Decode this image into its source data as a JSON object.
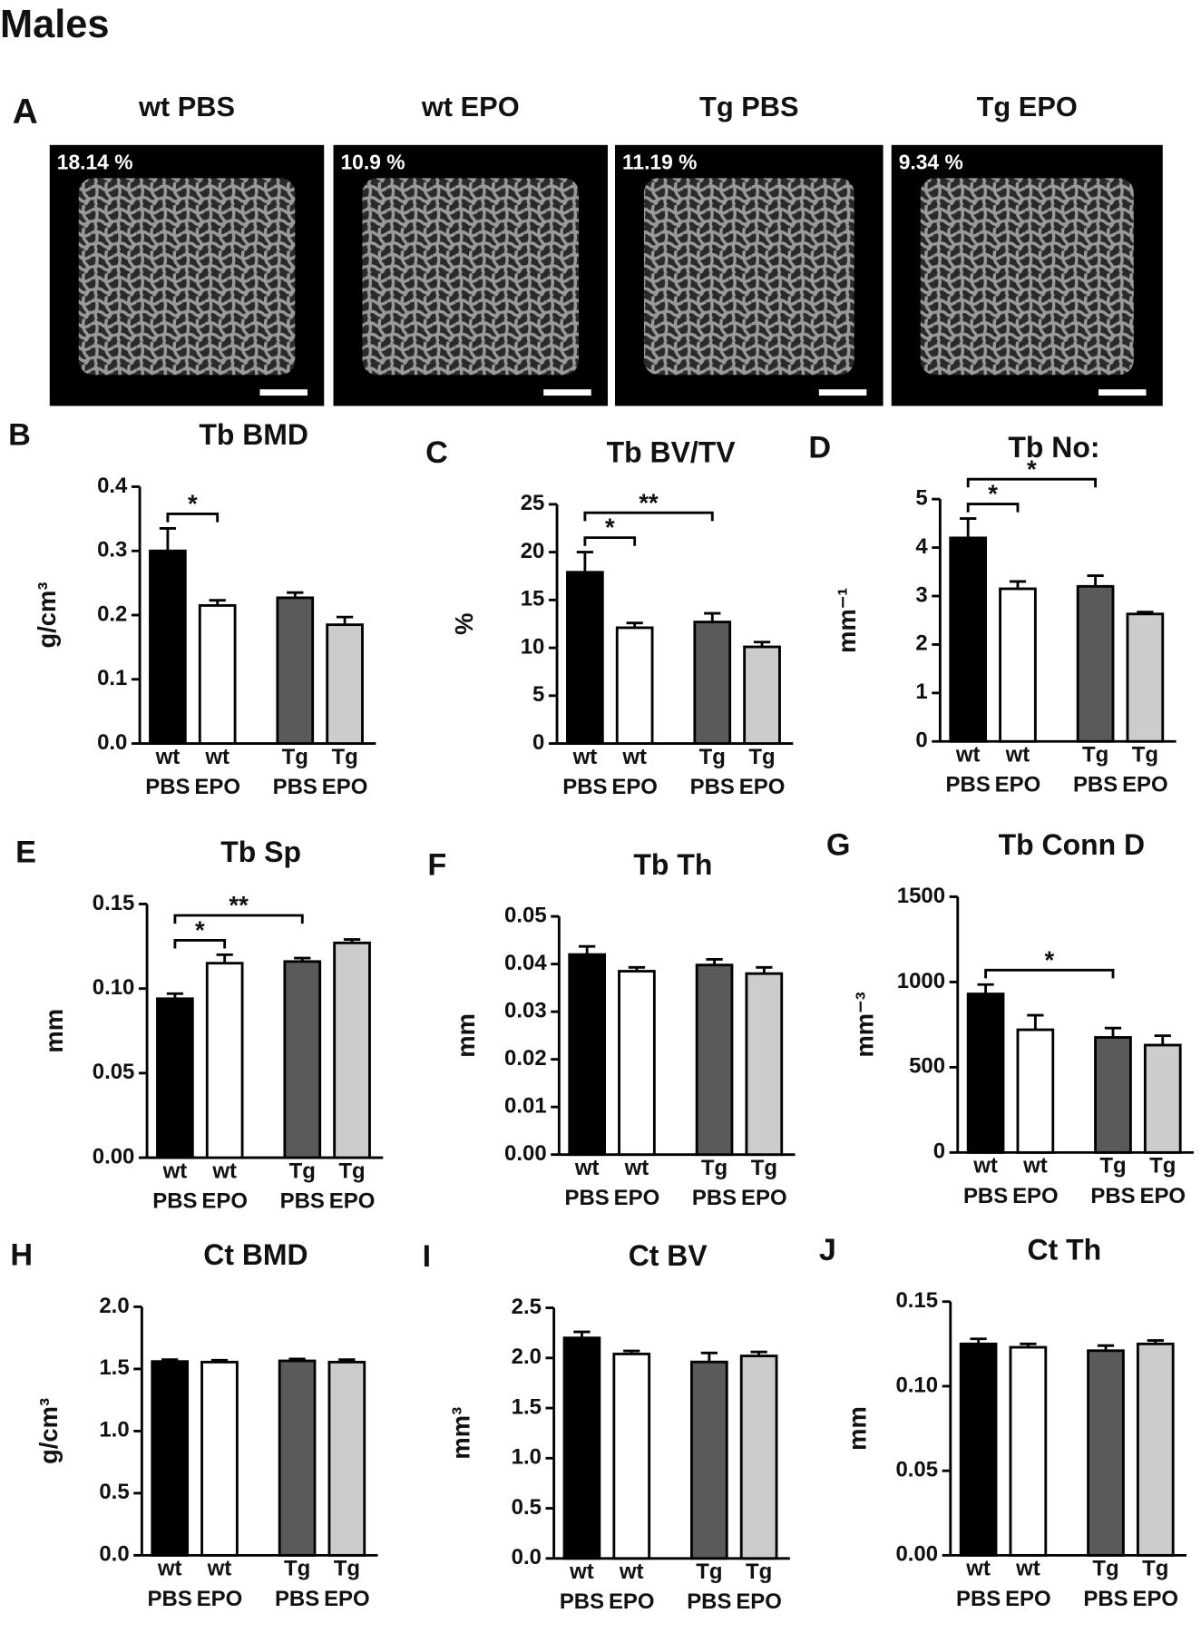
{
  "figure_title": "Males",
  "panel_a": {
    "label": "A",
    "images": [
      {
        "title": "wt PBS",
        "bv_tv": "18.14 %"
      },
      {
        "title": "wt EPO",
        "bv_tv": "10.9 %"
      },
      {
        "title": "Tg PBS",
        "bv_tv": "11.19 %"
      },
      {
        "title": "Tg EPO",
        "bv_tv": "9.34 %"
      }
    ]
  },
  "chart_data": [
    {
      "type": "bar",
      "panel": "B",
      "title": "Tb BMD",
      "y_label": "g/cm³",
      "categories": [
        [
          "wt",
          "PBS"
        ],
        [
          "wt",
          "EPO"
        ],
        [
          "Tg",
          "PBS"
        ],
        [
          "Tg",
          "EPO"
        ]
      ],
      "values": [
        0.3,
        0.215,
        0.227,
        0.185
      ],
      "errors": [
        0.035,
        0.008,
        0.008,
        0.012
      ],
      "colors": [
        "#000000",
        "#ffffff",
        "#5a5a5a",
        "#cccccc"
      ],
      "ylim": [
        0,
        0.4
      ],
      "yticks": [
        {
          "value": 0,
          "label": "0.0"
        },
        0.1,
        0.2,
        0.3,
        0.4
      ],
      "significance": [
        {
          "groups": [
            0,
            1
          ],
          "label": "*"
        }
      ]
    },
    {
      "type": "bar",
      "panel": "C",
      "title": "Tb BV/TV",
      "y_label": "%",
      "categories": [
        [
          "wt",
          "PBS"
        ],
        [
          "wt",
          "EPO"
        ],
        [
          "Tg",
          "PBS"
        ],
        [
          "Tg",
          "EPO"
        ]
      ],
      "values": [
        17.9,
        12.1,
        12.7,
        10.1
      ],
      "errors": [
        2.1,
        0.5,
        0.9,
        0.5
      ],
      "colors": [
        "#000000",
        "#ffffff",
        "#5a5a5a",
        "#cccccc"
      ],
      "ylim": [
        0,
        25
      ],
      "yticks": [
        0,
        5,
        10,
        15,
        20,
        25
      ],
      "significance": [
        {
          "groups": [
            0,
            1
          ],
          "label": "*"
        },
        {
          "groups": [
            0,
            2
          ],
          "label": "**"
        }
      ]
    },
    {
      "type": "bar",
      "panel": "D",
      "title": "Tb No:",
      "y_label": "mm⁻¹",
      "categories": [
        [
          "wt",
          "PBS"
        ],
        [
          "wt",
          "EPO"
        ],
        [
          "Tg",
          "PBS"
        ],
        [
          "Tg",
          "EPO"
        ]
      ],
      "values": [
        4.2,
        3.15,
        3.2,
        2.63
      ],
      "errors": [
        0.4,
        0.15,
        0.22,
        0.04
      ],
      "colors": [
        "#000000",
        "#ffffff",
        "#5a5a5a",
        "#cccccc"
      ],
      "ylim": [
        0,
        5
      ],
      "yticks": [
        0,
        1,
        2,
        3,
        4,
        5
      ],
      "significance": [
        {
          "groups": [
            0,
            1
          ],
          "label": "*"
        },
        {
          "groups": [
            0,
            2
          ],
          "label": "*"
        }
      ]
    },
    {
      "type": "bar",
      "panel": "E",
      "title": "Tb Sp",
      "y_label": "mm",
      "categories": [
        [
          "wt",
          "PBS"
        ],
        [
          "wt",
          "EPO"
        ],
        [
          "Tg",
          "PBS"
        ],
        [
          "Tg",
          "EPO"
        ]
      ],
      "values": [
        0.094,
        0.115,
        0.116,
        0.127
      ],
      "errors": [
        0.003,
        0.005,
        0.002,
        0.002
      ],
      "colors": [
        "#000000",
        "#ffffff",
        "#5a5a5a",
        "#cccccc"
      ],
      "ylim": [
        0,
        0.15
      ],
      "yticks": [
        {
          "value": 0,
          "label": "0.00"
        },
        0.05,
        {
          "value": 0.1,
          "label": "0.10"
        },
        0.15
      ],
      "significance": [
        {
          "groups": [
            0,
            1
          ],
          "label": "*"
        },
        {
          "groups": [
            0,
            2
          ],
          "label": "**"
        }
      ]
    },
    {
      "type": "bar",
      "panel": "F",
      "title": "Tb Th",
      "y_label": "mm",
      "categories": [
        [
          "wt",
          "PBS"
        ],
        [
          "wt",
          "EPO"
        ],
        [
          "Tg",
          "PBS"
        ],
        [
          "Tg",
          "EPO"
        ]
      ],
      "values": [
        0.042,
        0.0385,
        0.0398,
        0.038
      ],
      "errors": [
        0.0017,
        0.0008,
        0.0012,
        0.0013
      ],
      "colors": [
        "#000000",
        "#ffffff",
        "#5a5a5a",
        "#cccccc"
      ],
      "ylim": [
        0,
        0.05
      ],
      "yticks": [
        {
          "value": 0,
          "label": "0.00"
        },
        0.01,
        0.02,
        0.03,
        0.04,
        0.05
      ],
      "significance": []
    },
    {
      "type": "bar",
      "panel": "G",
      "title": "Tb Conn D",
      "y_label": "mm⁻³",
      "categories": [
        [
          "wt",
          "PBS"
        ],
        [
          "wt",
          "EPO"
        ],
        [
          "Tg",
          "PBS"
        ],
        [
          "Tg",
          "EPO"
        ]
      ],
      "values": [
        930,
        720,
        675,
        630
      ],
      "errors": [
        55,
        85,
        55,
        55
      ],
      "colors": [
        "#000000",
        "#ffffff",
        "#5a5a5a",
        "#cccccc"
      ],
      "ylim": [
        0,
        1500
      ],
      "yticks": [
        0,
        500,
        1000,
        1500
      ],
      "significance": [
        {
          "groups": [
            0,
            2
          ],
          "label": "*"
        }
      ]
    },
    {
      "type": "bar",
      "panel": "H",
      "title": "Ct BMD",
      "y_label": "g/cm³",
      "categories": [
        [
          "wt",
          "PBS"
        ],
        [
          "wt",
          "EPO"
        ],
        [
          "Tg",
          "PBS"
        ],
        [
          "Tg",
          "EPO"
        ]
      ],
      "values": [
        1.56,
        1.555,
        1.565,
        1.555
      ],
      "errors": [
        0.015,
        0.015,
        0.015,
        0.02
      ],
      "colors": [
        "#000000",
        "#ffffff",
        "#5a5a5a",
        "#cccccc"
      ],
      "ylim": [
        0,
        2
      ],
      "yticks": [
        {
          "value": 0,
          "label": "0.0"
        },
        0.5,
        {
          "value": 1,
          "label": "1.0"
        },
        1.5,
        {
          "value": 2,
          "label": "2.0"
        }
      ],
      "significance": []
    },
    {
      "type": "bar",
      "panel": "I",
      "title": "Ct BV",
      "y_label": "mm³",
      "categories": [
        [
          "wt",
          "PBS"
        ],
        [
          "wt",
          "EPO"
        ],
        [
          "Tg",
          "PBS"
        ],
        [
          "Tg",
          "EPO"
        ]
      ],
      "values": [
        2.2,
        2.04,
        1.96,
        2.02
      ],
      "errors": [
        0.06,
        0.03,
        0.09,
        0.04
      ],
      "colors": [
        "#000000",
        "#ffffff",
        "#5a5a5a",
        "#cccccc"
      ],
      "ylim": [
        0,
        2.5
      ],
      "yticks": [
        {
          "value": 0,
          "label": "0.0"
        },
        0.5,
        {
          "value": 1,
          "label": "1.0"
        },
        1.5,
        {
          "value": 2,
          "label": "2.0"
        },
        2.5
      ],
      "significance": []
    },
    {
      "type": "bar",
      "panel": "J",
      "title": "Ct Th",
      "y_label": "mm",
      "categories": [
        [
          "wt",
          "PBS"
        ],
        [
          "wt",
          "EPO"
        ],
        [
          "Tg",
          "PBS"
        ],
        [
          "Tg",
          "EPO"
        ]
      ],
      "values": [
        0.125,
        0.123,
        0.121,
        0.125
      ],
      "errors": [
        0.003,
        0.002,
        0.003,
        0.002
      ],
      "colors": [
        "#000000",
        "#ffffff",
        "#5a5a5a",
        "#cccccc"
      ],
      "ylim": [
        0,
        0.15
      ],
      "yticks": [
        {
          "value": 0,
          "label": "0.00"
        },
        0.05,
        {
          "value": 0.1,
          "label": "0.10"
        },
        0.15
      ],
      "significance": []
    }
  ]
}
